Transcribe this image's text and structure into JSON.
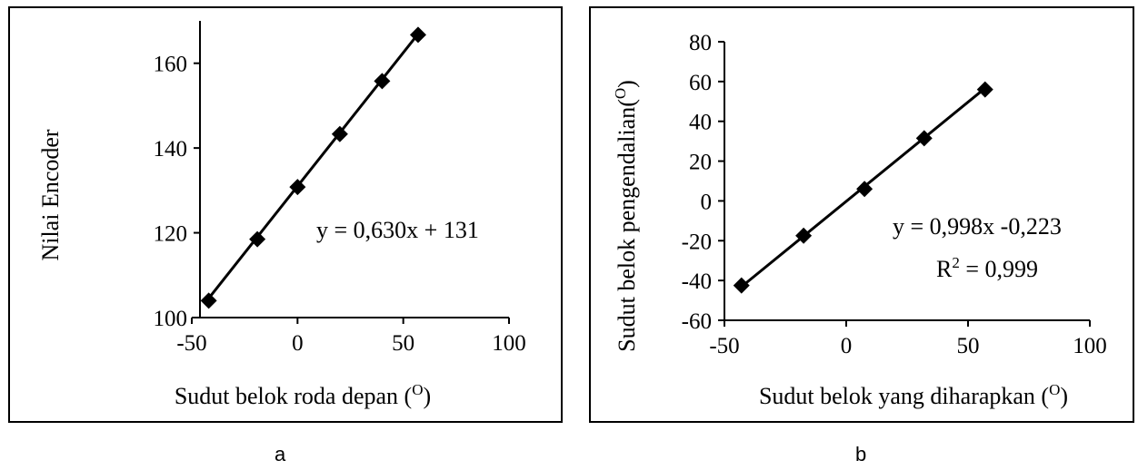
{
  "chart_data": [
    {
      "type": "scatter",
      "panel": "a",
      "xlabel": "Sudut belok roda depan (",
      "xlabel_sup": "O",
      "xlabel_end": ")",
      "ylabel": "Nilai Encoder",
      "xlim": [
        -50,
        100
      ],
      "ylim": [
        100,
        170
      ],
      "xticks": [
        -50,
        0,
        50,
        100
      ],
      "yticks": [
        100,
        120,
        140,
        160
      ],
      "grid": false,
      "series": [
        {
          "x": [
            -42,
            -19,
            0,
            20,
            40,
            57
          ],
          "y": [
            104,
            118.5,
            130.8,
            143.3,
            155.8,
            166.7
          ]
        }
      ],
      "trendline": {
        "slope": 0.63,
        "intercept": 131
      },
      "equation": "y = 0,630x + 131",
      "r2_label": "",
      "r2_sup": "",
      "r2_value": ""
    },
    {
      "type": "scatter",
      "panel": "b",
      "xlabel": "Sudut belok yang diharapkan (",
      "xlabel_sup": "O",
      "xlabel_end": ")",
      "ylabel": "Sudut belok pengendalian(",
      "ylabel_sup": "O",
      "ylabel_end": ")",
      "xlim": [
        -50,
        100
      ],
      "ylim": [
        -60,
        80
      ],
      "xticks": [
        -50,
        0,
        50,
        100
      ],
      "yticks": [
        -60,
        -40,
        -20,
        0,
        20,
        40,
        60,
        80
      ],
      "grid": false,
      "series": [
        {
          "x": [
            -43,
            -17.5,
            7.5,
            32,
            57
          ],
          "y": [
            -42.5,
            -17.5,
            6,
            31.5,
            56
          ]
        }
      ],
      "trendline": {
        "slope": 0.998,
        "intercept": -0.223
      },
      "equation": "y = 0,998x -0,223",
      "r2_label": "R",
      "r2_sup": "2",
      "r2_value": " = 0,999"
    }
  ],
  "captions": {
    "a": "a",
    "b": "b"
  }
}
